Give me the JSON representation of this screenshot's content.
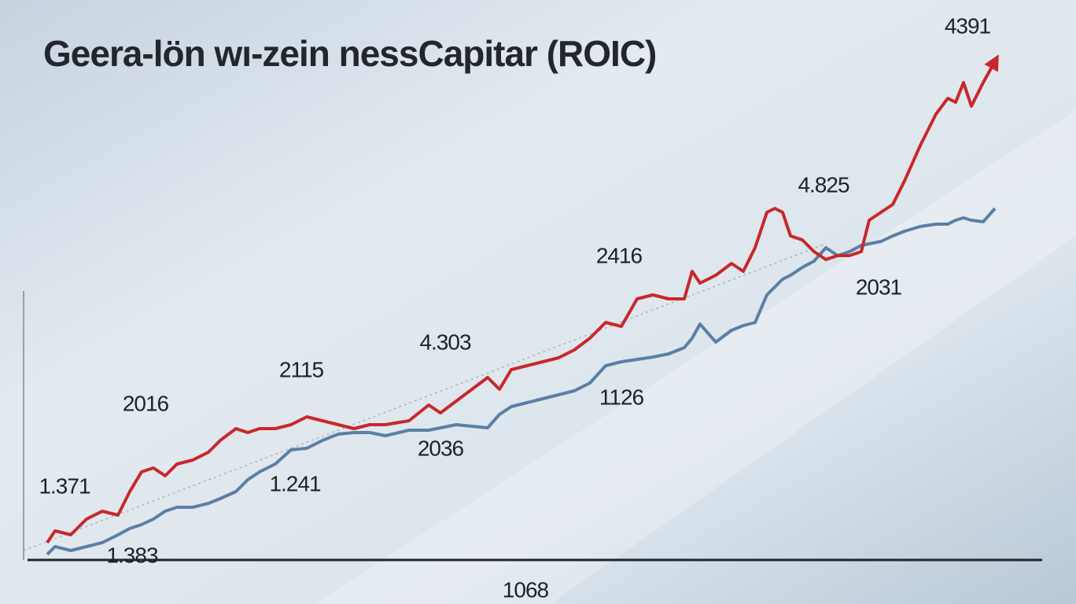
{
  "chart_data": {
    "type": "line",
    "title": "Geera-lön wı-zein nessCapitar (ROIC)",
    "xlim": [
      0,
      1230
    ],
    "ylim": [
      0,
      652
    ],
    "x": [
      0,
      10,
      30,
      50,
      70,
      90,
      105,
      120,
      135,
      150,
      165,
      185,
      205,
      220,
      240,
      255,
      270,
      290,
      310,
      330,
      350,
      370,
      390,
      410,
      430,
      460,
      485,
      500,
      520,
      540,
      560,
      575,
      590,
      610,
      630,
      650,
      670,
      690,
      710,
      730,
      750,
      770,
      790,
      810,
      820,
      830,
      850,
      870,
      885,
      900,
      915,
      925,
      935,
      945,
      960,
      975,
      990,
      1005,
      1020,
      1035,
      1045,
      1060,
      1075,
      1090,
      1110,
      1130,
      1145,
      1155,
      1165,
      1175,
      1190,
      1205
    ],
    "series": [
      {
        "color": "#c8282b",
        "values": [
          22,
          37,
          32,
          52,
          62,
          57,
          87,
          112,
          117,
          107,
          122,
          127,
          137,
          152,
          167,
          162,
          167,
          167,
          172,
          182,
          177,
          172,
          167,
          172,
          172,
          177,
          197,
          187,
          202,
          217,
          232,
          217,
          242,
          247,
          252,
          257,
          267,
          282,
          302,
          297,
          332,
          337,
          332,
          332,
          367,
          352,
          362,
          377,
          367,
          397,
          442,
          447,
          442,
          412,
          407,
          392,
          382,
          387,
          387,
          392,
          432,
          442,
          452,
          482,
          527,
          567,
          587,
          582,
          607,
          577,
          607,
          634
        ]
      },
      {
        "color": "#5b7fa6",
        "values": [
          7,
          17,
          12,
          17,
          22,
          32,
          40,
          45,
          52,
          62,
          67,
          67,
          72,
          78,
          87,
          102,
          112,
          122,
          140,
          142,
          152,
          160,
          162,
          162,
          158,
          165,
          165,
          168,
          172,
          170,
          168,
          185,
          195,
          200,
          205,
          210,
          215,
          225,
          247,
          252,
          255,
          258,
          262,
          270,
          282,
          300,
          277,
          292,
          298,
          302,
          337,
          347,
          357,
          362,
          372,
          380,
          397,
          387,
          392,
          400,
          402,
          405,
          412,
          418,
          424,
          427,
          427,
          432,
          435,
          432,
          430,
          447
        ]
      }
    ],
    "annotations": [
      "4391",
      "4.825",
      "2416",
      "2031",
      "4.303",
      "2115",
      "2016",
      "1126",
      "2036",
      "1.241",
      "1.371",
      "1.383",
      "1068"
    ]
  }
}
